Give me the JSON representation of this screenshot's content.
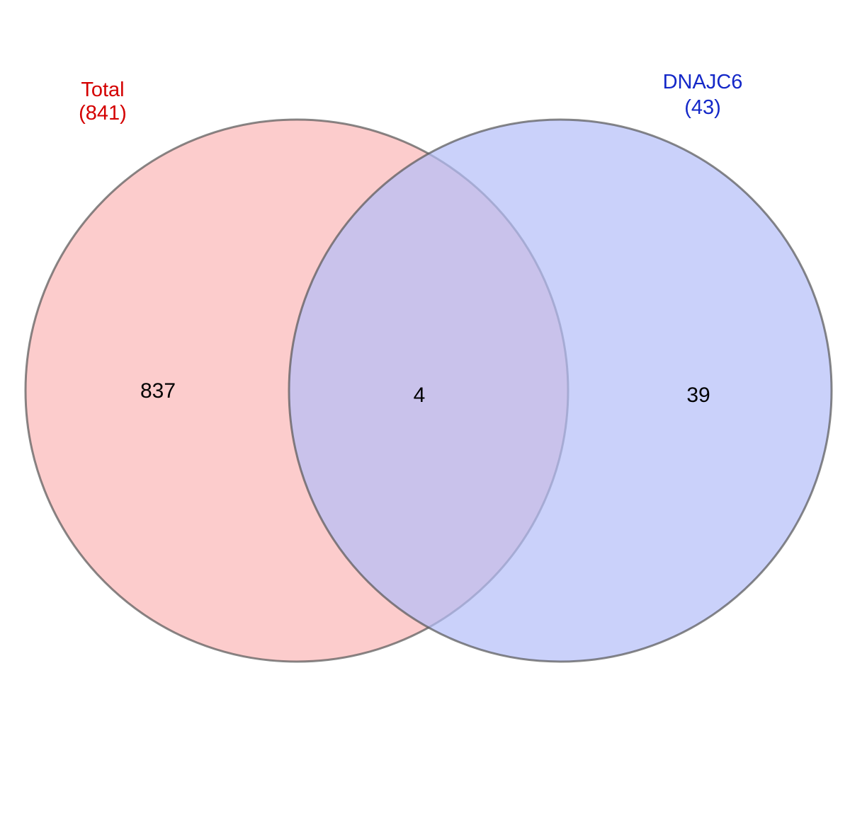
{
  "diagram": {
    "type": "venn",
    "sets": [
      {
        "name": "Total",
        "count_label": "(841)",
        "total": 841,
        "fill_color": "#fbb7b7",
        "label_color": "#d40000"
      },
      {
        "name": "DNAJC6",
        "count_label": "(43)",
        "total": 43,
        "fill_color": "#b4bdf8",
        "label_color": "#1428c8"
      }
    ],
    "regions": {
      "left_only": "837",
      "intersection": "4",
      "right_only": "39"
    },
    "outline_color": "#555555",
    "fill_opacity": 0.7
  }
}
